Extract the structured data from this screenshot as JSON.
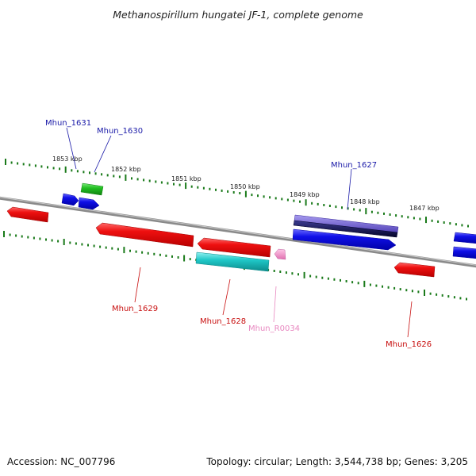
{
  "title": "Methanospirillum hungatei JF-1, complete genome",
  "footer": {
    "accession": "Accession: NC_007796",
    "summary": "Topology: circular; Length: 3,544,738 bp; Genes: 3,205"
  },
  "colors": {
    "forward_gene": "#1010e8",
    "reverse_gene": "#ee1010",
    "trna": "#f090c8",
    "rrna_green": "#22c022",
    "cyan_feature": "#20c8c8",
    "highlight_purple": "#6a5ad0",
    "dark_navy": "#0a0a50",
    "tick": "#1a7a1a",
    "backbone": "#8a8a8a",
    "label_blue": "#1a1aa8",
    "label_red": "#c81010",
    "label_pink": "#e888c0"
  },
  "kbp_labels": [
    "1853 kbp",
    "1852 kbp",
    "1851 kbp",
    "1850 kbp",
    "1849 kbp",
    "1848 kbp",
    "1847 kbp"
  ],
  "gene_labels": {
    "mhun_1631": "Mhun_1631",
    "mhun_1630": "Mhun_1630",
    "mhun_1627": "Mhun_1627",
    "mhun_1629": "Mhun_1629",
    "mhun_1628": "Mhun_1628",
    "mhun_r0034": "Mhun_R0034",
    "mhun_1626": "Mhun_1626"
  }
}
